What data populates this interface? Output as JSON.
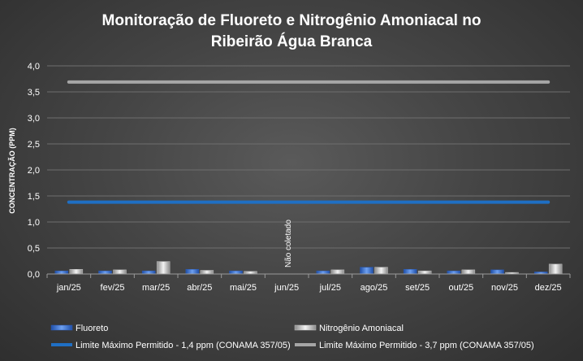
{
  "chart_data": {
    "type": "bar",
    "title_line1": "Monitoração  de  Fluoreto  e Nitrogênio  Amoniacal  no",
    "title_line2": "Ribeirão  Água  Branca",
    "xlabel": "",
    "ylabel": "CONCENTRAÇÃO  (PPM)",
    "ylim": [
      0,
      4.0
    ],
    "yticks": [
      "0,0",
      "0,5",
      "1,0",
      "1,5",
      "2,0",
      "2,5",
      "3,0",
      "3,5",
      "4,0"
    ],
    "categories": [
      "jan/25",
      "fev/25",
      "mar/25",
      "abr/25",
      "mai/25",
      "jun/25",
      "jul/25",
      "ago/25",
      "set/25",
      "out/25",
      "nov/25",
      "dez/25"
    ],
    "series": [
      {
        "name": "Fluoreto",
        "color": "#3b7ae0",
        "values": [
          0.06,
          0.06,
          0.06,
          0.09,
          0.06,
          null,
          0.06,
          0.13,
          0.09,
          0.06,
          0.08,
          0.04
        ]
      },
      {
        "name": "Nitrogênio Amoniacal",
        "color": "#d9d9d9",
        "values": [
          0.09,
          0.08,
          0.24,
          0.07,
          0.05,
          null,
          0.08,
          0.13,
          0.06,
          0.08,
          0.03,
          0.19
        ]
      }
    ],
    "limits": [
      {
        "name": "Limite Máximo Permitido - 1,4 ppm (CONAMA 357/05)",
        "value": 1.38,
        "color": "#1f6fc4"
      },
      {
        "name": "Limite Máximo Permitido - 3,7 ppm (CONAMA 357/05)",
        "value": 3.69,
        "color": "#a6a6a6"
      }
    ],
    "annotations": [
      {
        "category": "jun/25",
        "text": "Não coletado"
      }
    ],
    "grid": true,
    "legend_position": "bottom"
  }
}
